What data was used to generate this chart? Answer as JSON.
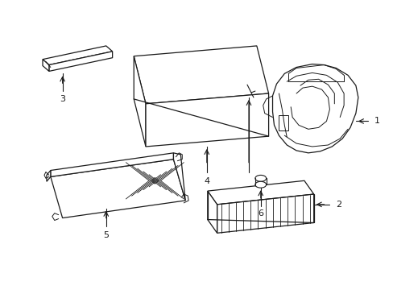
{
  "background_color": "#ffffff",
  "line_color": "#1a1a1a",
  "line_width": 0.9,
  "figsize": [
    4.89,
    3.6
  ],
  "dpi": 100
}
